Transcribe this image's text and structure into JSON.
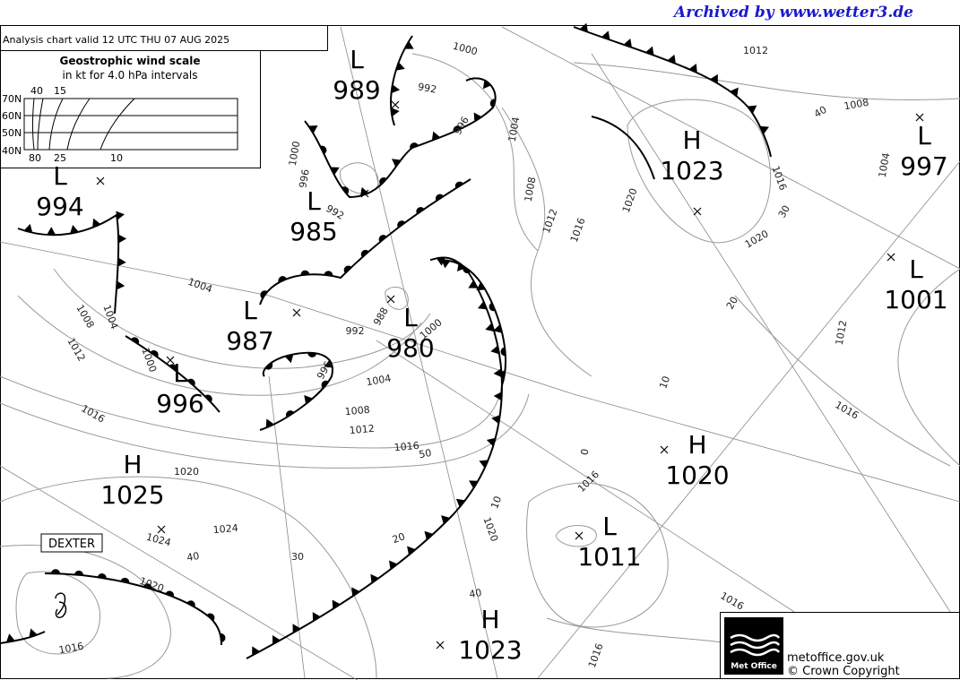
{
  "header": {
    "archive": "Archived by www.wetter3.de",
    "analysis": "Analysis chart  valid 12 UTC THU 07  AUG 2025"
  },
  "wind_scale": {
    "title": "Geostrophic wind scale",
    "subtitle": "in kt for 4.0 hPa intervals",
    "top_labels": [
      "40",
      "15"
    ],
    "lat_labels": [
      "70N",
      "60N",
      "50N",
      "40N"
    ],
    "bottom_labels": [
      "80",
      "25",
      "10"
    ]
  },
  "centers": [
    {
      "letter": "L",
      "value": "989"
    },
    {
      "letter": "L",
      "value": "994"
    },
    {
      "letter": "L",
      "value": "985"
    },
    {
      "letter": "L",
      "value": "987"
    },
    {
      "letter": "L",
      "value": "980"
    },
    {
      "letter": "L",
      "value": "996"
    },
    {
      "letter": "H",
      "value": "1025"
    },
    {
      "letter": "H",
      "value": "1023"
    },
    {
      "letter": "L",
      "value": "997"
    },
    {
      "letter": "L",
      "value": "1001"
    },
    {
      "letter": "H",
      "value": "1020"
    },
    {
      "letter": "L",
      "value": "1011"
    },
    {
      "letter": "H",
      "value": "1023"
    }
  ],
  "isobar_labels": [
    "1000",
    "992",
    "1012",
    "1008",
    "40",
    "1004",
    "996",
    "1004",
    "1016",
    "1008",
    "1020",
    "30",
    "1012",
    "1016",
    "996",
    "992",
    "1000",
    "1020",
    "1004",
    "1004",
    "1008",
    "1012",
    "20",
    "1000",
    "992",
    "988",
    "1012",
    "1016",
    "1000",
    "996",
    "1004",
    "10",
    "1008",
    "1012",
    "1016",
    "1016",
    "50",
    "1020",
    "0",
    "1016",
    "10",
    "1024",
    "1020",
    "1024",
    "40",
    "30",
    "20",
    "1020",
    "40",
    "1016",
    "1016",
    "1016"
  ],
  "storm_name": "DEXTER",
  "footer": {
    "logo": "Met Office",
    "site": "metoffice.gov.uk",
    "copyright": "© Crown Copyright"
  }
}
